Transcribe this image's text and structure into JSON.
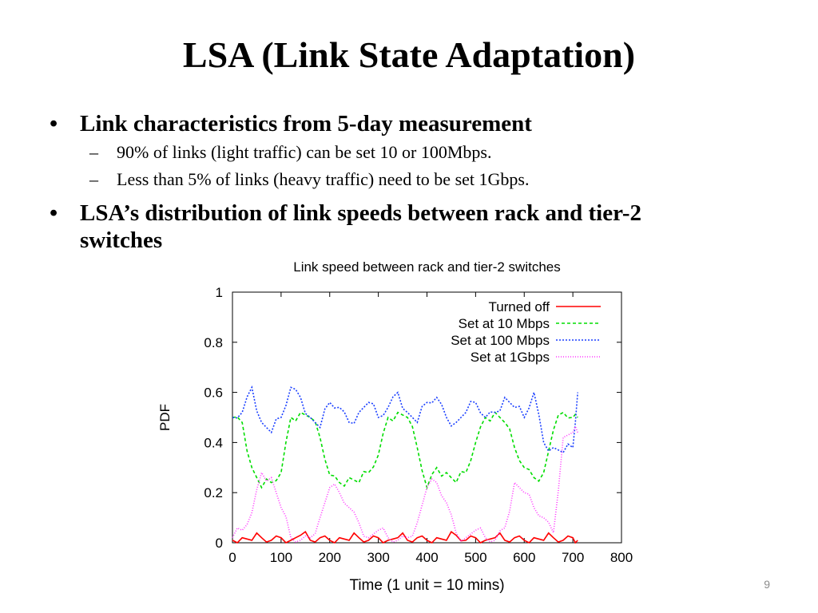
{
  "slide": {
    "title": "LSA (Link State Adaptation)",
    "page_number": "9",
    "bullets": [
      {
        "text": "Link characteristics from 5-day measurement",
        "sub": [
          "90% of links (light traffic) can be set 10 or 100Mbps.",
          "Less than 5% of links (heavy traffic) need to be set 1Gbps."
        ]
      },
      {
        "line1": "LSA’s distribution of link speeds between rack and tier-2",
        "line2": "switches"
      }
    ]
  },
  "chart_data": {
    "type": "line",
    "title": "Link speed between rack and tier-2 switches",
    "xlabel": "Time (1 unit = 10 mins)",
    "ylabel": "PDF",
    "xlim": [
      0,
      800
    ],
    "ylim": [
      0,
      1
    ],
    "xticks": [
      "0",
      "100",
      "200",
      "300",
      "400",
      "500",
      "600",
      "700",
      "800"
    ],
    "yticks": [
      "0",
      "0.2",
      "0.4",
      "0.6",
      "0.8",
      "1"
    ],
    "legend_position": "top-right",
    "grid": false,
    "x": [
      0,
      20,
      40,
      60,
      80,
      100,
      120,
      140,
      160,
      180,
      200,
      220,
      240,
      260,
      280,
      300,
      320,
      340,
      360,
      380,
      400,
      420,
      440,
      460,
      480,
      500,
      520,
      540,
      560,
      580,
      600,
      620,
      640,
      660,
      680,
      700,
      710
    ],
    "series": [
      {
        "name": "Turned off",
        "color": "#ff0000",
        "dash": "",
        "values": [
          0.01,
          0.02,
          0.01,
          0.02,
          0.01,
          0.02,
          0.01,
          0.03,
          0.01,
          0.02,
          0.01,
          0.02,
          0.01,
          0.02,
          0.01,
          0.02,
          0.01,
          0.02,
          0.01,
          0.02,
          0.01,
          0.02,
          0.01,
          0.03,
          0.01,
          0.02,
          0.01,
          0.02,
          0.01,
          0.02,
          0.01,
          0.02,
          0.01,
          0.02,
          0.01,
          0.02,
          0.01
        ]
      },
      {
        "name": "Set at 10 Mbps",
        "color": "#00dd00",
        "dash": "4,3",
        "values": [
          0.5,
          0.48,
          0.3,
          0.22,
          0.24,
          0.28,
          0.5,
          0.52,
          0.5,
          0.42,
          0.27,
          0.24,
          0.26,
          0.24,
          0.28,
          0.35,
          0.5,
          0.52,
          0.5,
          0.38,
          0.22,
          0.3,
          0.28,
          0.24,
          0.28,
          0.4,
          0.5,
          0.52,
          0.48,
          0.38,
          0.3,
          0.26,
          0.28,
          0.45,
          0.52,
          0.5,
          0.5
        ]
      },
      {
        "name": "Set at 100 Mbps",
        "color": "#1a3fff",
        "dash": "2,2",
        "values": [
          0.5,
          0.52,
          0.62,
          0.48,
          0.44,
          0.5,
          0.62,
          0.58,
          0.5,
          0.46,
          0.56,
          0.54,
          0.48,
          0.52,
          0.56,
          0.5,
          0.54,
          0.6,
          0.52,
          0.48,
          0.56,
          0.58,
          0.5,
          0.48,
          0.52,
          0.56,
          0.5,
          0.52,
          0.58,
          0.54,
          0.5,
          0.6,
          0.4,
          0.38,
          0.36,
          0.38,
          0.6
        ]
      },
      {
        "name": "Set at 1Gbps",
        "color": "#ff33ff",
        "dash": "1,2",
        "values": [
          0.02,
          0.05,
          0.12,
          0.28,
          0.26,
          0.14,
          0.02,
          0.01,
          0.02,
          0.1,
          0.22,
          0.2,
          0.14,
          0.08,
          0.02,
          0.05,
          0.02,
          0.01,
          0.02,
          0.08,
          0.22,
          0.24,
          0.16,
          0.04,
          0.02,
          0.05,
          0.02,
          0.01,
          0.06,
          0.24,
          0.2,
          0.14,
          0.1,
          0.04,
          0.42,
          0.44,
          0.44
        ]
      }
    ]
  }
}
